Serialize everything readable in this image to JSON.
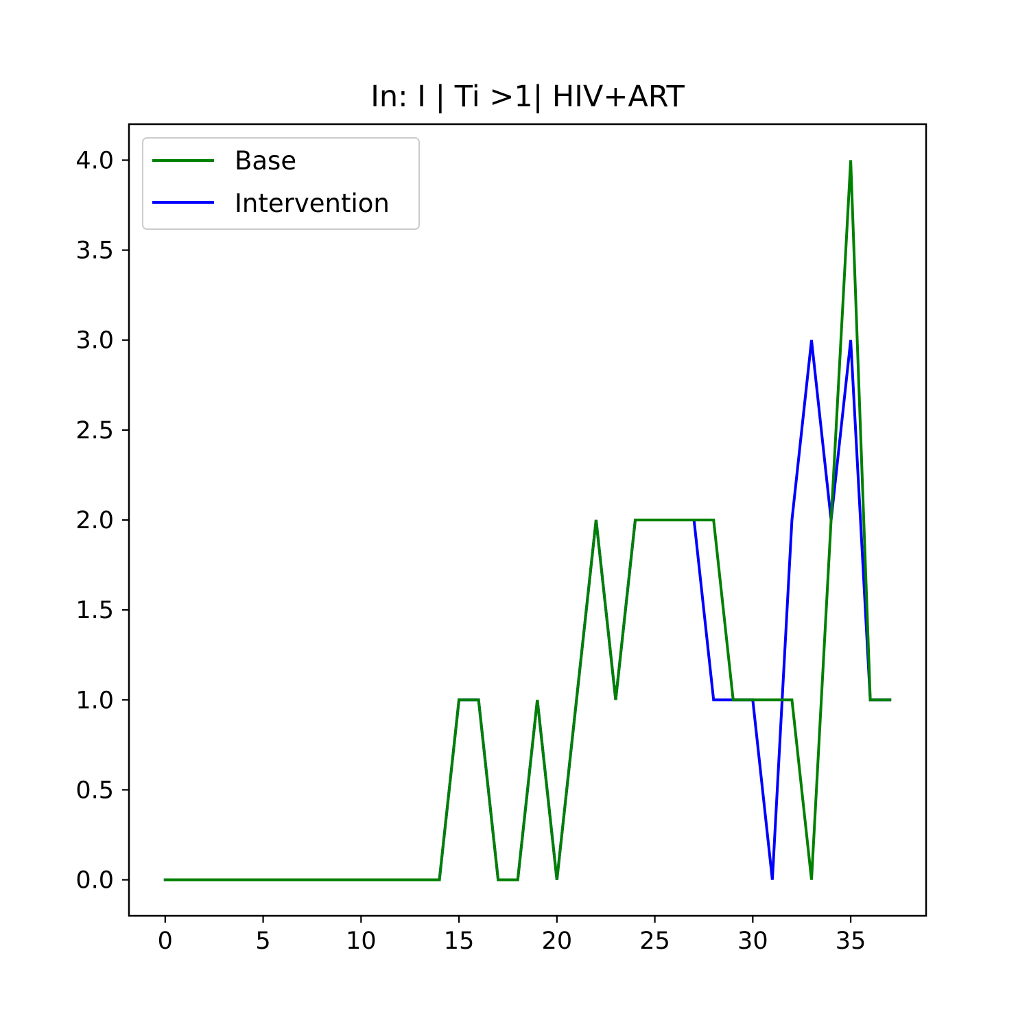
{
  "chart_data": {
    "type": "line",
    "title": "In: I | Ti >1| HIV+ART",
    "xlabel": "",
    "ylabel": "",
    "xlim": [
      -1.85,
      38.85
    ],
    "ylim": [
      -0.2,
      4.2
    ],
    "xticks": [
      0,
      5,
      10,
      15,
      20,
      25,
      30,
      35
    ],
    "xtick_labels": [
      "0",
      "5",
      "10",
      "15",
      "20",
      "25",
      "30",
      "35"
    ],
    "yticks": [
      0.0,
      0.5,
      1.0,
      1.5,
      2.0,
      2.5,
      3.0,
      3.5,
      4.0
    ],
    "ytick_labels": [
      "0.0",
      "0.5",
      "1.0",
      "1.5",
      "2.0",
      "2.5",
      "3.0",
      "3.5",
      "4.0"
    ],
    "grid": false,
    "legend_position": "upper-left",
    "x": [
      0,
      1,
      2,
      3,
      4,
      5,
      6,
      7,
      8,
      9,
      10,
      11,
      12,
      13,
      14,
      15,
      16,
      17,
      18,
      19,
      20,
      21,
      22,
      23,
      24,
      25,
      26,
      27,
      28,
      29,
      30,
      31,
      32,
      33,
      34,
      35,
      36,
      37
    ],
    "series": [
      {
        "name": "Intervention",
        "color": "#0000ff",
        "values": [
          0,
          0,
          0,
          0,
          0,
          0,
          0,
          0,
          0,
          0,
          0,
          0,
          0,
          0,
          0,
          1,
          1,
          0,
          0,
          1,
          0,
          1,
          2,
          1,
          2,
          2,
          2,
          2,
          1,
          1,
          1,
          0,
          2,
          3,
          2,
          3,
          1,
          1
        ]
      },
      {
        "name": "Base",
        "color": "#008000",
        "values": [
          0,
          0,
          0,
          0,
          0,
          0,
          0,
          0,
          0,
          0,
          0,
          0,
          0,
          0,
          0,
          1,
          1,
          0,
          0,
          1,
          0,
          1,
          2,
          1,
          2,
          2,
          2,
          2,
          2,
          1,
          1,
          1,
          1,
          0,
          2,
          4,
          1,
          1
        ]
      }
    ],
    "legend": [
      {
        "name": "Base",
        "color": "#008000"
      },
      {
        "name": "Intervention",
        "color": "#0000ff"
      }
    ]
  }
}
